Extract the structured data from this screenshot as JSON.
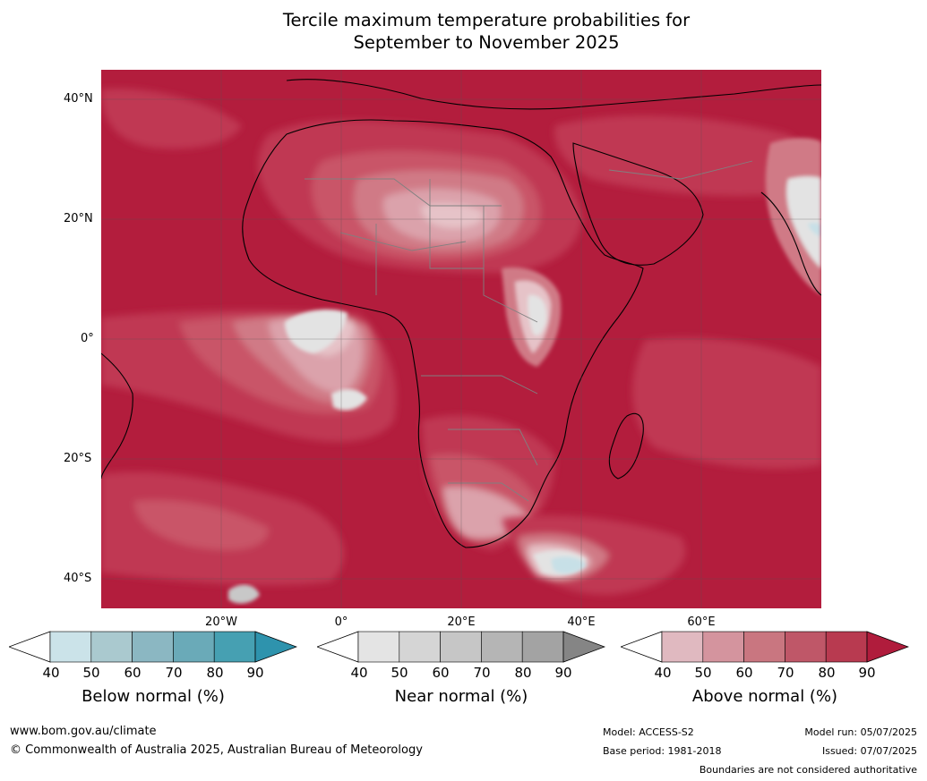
{
  "title": {
    "line1": "Tercile maximum temperature probabilities for",
    "line2": "September to November 2025"
  },
  "map": {
    "lat_labels": [
      "40°N",
      "20°N",
      "0°",
      "20°S",
      "40°S"
    ],
    "lon_labels": [
      "20°W",
      "0°",
      "20°E",
      "40°E",
      "60°E"
    ],
    "colors": {
      "above_90": "#b31d3d",
      "above_80": "#c03952",
      "above_70": "#c95568",
      "above_60": "#d07a86",
      "above_50": "#dba2ab",
      "above_40": "#e6c3c8",
      "near": "#e3e3e3",
      "near_dark": "#c8c8c8",
      "below": "#c7e0e7",
      "coast": "#000000",
      "border": "#808080",
      "grid": "#555555"
    }
  },
  "legends": [
    {
      "title": "Below normal (%)",
      "ticks": [
        "40",
        "50",
        "60",
        "70",
        "80",
        "90"
      ],
      "colors": [
        "#ffffff",
        "#cbe3e9",
        "#aac9cf",
        "#8bb7c2",
        "#6aaab8",
        "#46a0b2",
        "#2e93ad"
      ]
    },
    {
      "title": "Near normal (%)",
      "ticks": [
        "40",
        "50",
        "60",
        "70",
        "80",
        "90"
      ],
      "colors": [
        "#ffffff",
        "#e4e4e4",
        "#d5d5d5",
        "#c6c6c6",
        "#b5b5b5",
        "#a3a3a3",
        "#858585"
      ]
    },
    {
      "title": "Above normal (%)",
      "ticks": [
        "40",
        "50",
        "60",
        "70",
        "80",
        "90"
      ],
      "colors": [
        "#ffffff",
        "#e0b9c0",
        "#d4949e",
        "#c97680",
        "#bf5768",
        "#b83a50",
        "#b01c3c"
      ]
    }
  ],
  "footer": {
    "website": "www.bom.gov.au/climate",
    "copyright": "© Commonwealth of Australia 2025, Australian Bureau of Meteorology",
    "model": "Model: ACCESS-S2",
    "base_period": "Base period: 1981-2018",
    "model_run": "Model run: 05/07/2025",
    "issued": "Issued: 07/07/2025",
    "disclaimer": "Boundaries are not considered authoritative"
  }
}
